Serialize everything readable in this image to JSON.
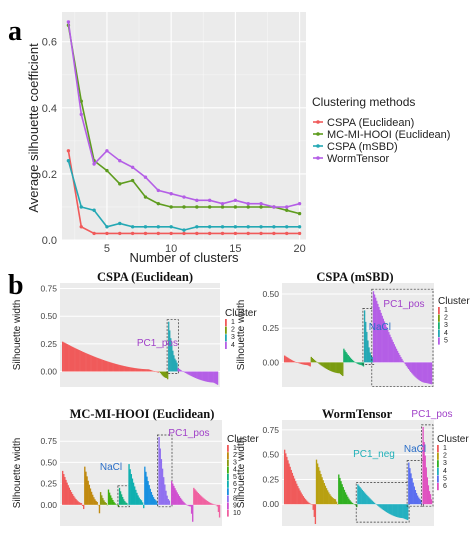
{
  "colors": {
    "CSPA (Euclidean)": "#f05a5a",
    "MC-MI-HOOI (Euclidean)": "#5e9c1e",
    "CSPA (mSBD)": "#24a8b4",
    "WormTensor": "#b45ee6",
    "panel_bg": "#ebebeb",
    "grid": "#ffffff",
    "label_purple": "#a040c8",
    "label_blue": "#2a6ec8",
    "label_cyan": "#20b0b8"
  },
  "chart_data": [
    {
      "type": "line",
      "panel_letter": "a",
      "xlabel": "Number of clusters",
      "ylabel": "Average silhouette coefficient",
      "xlim": [
        1.5,
        20.5
      ],
      "ylim": [
        0,
        0.69
      ],
      "x_ticks": [
        5,
        10,
        15,
        20
      ],
      "y_ticks": [
        0.0,
        0.2,
        0.4,
        0.6
      ],
      "y_tick_labels": [
        "0.0",
        "0.2",
        "0.4",
        "0.6"
      ],
      "grid": true,
      "legend_title": "Clustering methods",
      "legend_position": "right",
      "x": [
        2,
        3,
        4,
        5,
        6,
        7,
        8,
        9,
        10,
        11,
        12,
        13,
        14,
        15,
        16,
        17,
        18,
        19,
        20
      ],
      "series": [
        {
          "name": "CSPA (Euclidean)",
          "values": [
            0.27,
            0.04,
            0.02,
            0.02,
            0.02,
            0.02,
            0.02,
            0.02,
            0.02,
            0.02,
            0.02,
            0.02,
            0.02,
            0.02,
            0.02,
            0.02,
            0.02,
            0.02,
            0.02
          ]
        },
        {
          "name": "MC-MI-HOOI (Euclidean)",
          "values": [
            0.65,
            0.42,
            0.24,
            0.21,
            0.17,
            0.18,
            0.13,
            0.11,
            0.1,
            0.1,
            0.1,
            0.1,
            0.1,
            0.1,
            0.1,
            0.1,
            0.1,
            0.09,
            0.08
          ]
        },
        {
          "name": "CSPA (mSBD)",
          "values": [
            0.24,
            0.1,
            0.09,
            0.04,
            0.05,
            0.04,
            0.04,
            0.04,
            0.04,
            0.03,
            0.04,
            0.04,
            0.04,
            0.04,
            0.04,
            0.04,
            0.04,
            0.04,
            0.04
          ]
        },
        {
          "name": "WormTensor",
          "values": [
            0.66,
            0.38,
            0.23,
            0.27,
            0.24,
            0.22,
            0.19,
            0.15,
            0.14,
            0.13,
            0.12,
            0.12,
            0.11,
            0.12,
            0.11,
            0.11,
            0.1,
            0.1,
            0.11
          ]
        }
      ]
    },
    {
      "type": "bar",
      "panel_letter": "b",
      "title": "CSPA (Euclidean)",
      "ylabel": "Silhouette width",
      "ylim": [
        -0.14,
        0.8
      ],
      "y_ticks": [
        0.0,
        0.25,
        0.5,
        0.75
      ],
      "y_tick_labels": [
        "0.00",
        "0.25",
        "0.50",
        "0.75"
      ],
      "legend_title": "Cluster",
      "legend_labels": [
        "1",
        "2",
        "3",
        "4"
      ],
      "annotations": [
        {
          "text": "PC1_pos",
          "color": "purple"
        }
      ],
      "groups": [
        {
          "cluster": "1",
          "color": "#f05a5a",
          "start": 0.27,
          "end": 0.02,
          "share": 0.62,
          "tail": -0.01
        },
        {
          "cluster": "2",
          "color": "#7a9c10",
          "start": 0.0,
          "end": -0.06,
          "share": 0.06,
          "tail": -0.07
        },
        {
          "cluster": "3",
          "color": "#24a8b4",
          "start": 0.45,
          "end": 0.1,
          "share": 0.06,
          "tail": 0.08,
          "boxed": true
        },
        {
          "cluster": "4",
          "color": "#b45ee6",
          "start": 0.03,
          "end": -0.1,
          "share": 0.26,
          "tail": -0.12
        }
      ]
    },
    {
      "type": "bar",
      "title": "CSPA (mSBD)",
      "ylabel": "Silhouette width",
      "ylim": [
        -0.18,
        0.58
      ],
      "y_ticks": [
        0.0,
        0.25,
        0.5
      ],
      "y_tick_labels": [
        "0.00",
        "0.25",
        "0.50"
      ],
      "legend_title": "Cluster",
      "legend_labels": [
        "1",
        "2",
        "3",
        "4",
        "5"
      ],
      "annotations": [
        {
          "text": "NaCl",
          "color": "blue"
        },
        {
          "text": "PC1_pos",
          "color": "purple"
        }
      ],
      "groups": [
        {
          "cluster": "1",
          "color": "#f05a5a",
          "start": 0.05,
          "end": -0.02,
          "share": 0.18,
          "tail": -0.03
        },
        {
          "cluster": "2",
          "color": "#7a9c10",
          "start": 0.04,
          "end": -0.08,
          "share": 0.22,
          "tail": -0.1
        },
        {
          "cluster": "3",
          "color": "#18b070",
          "start": 0.1,
          "end": -0.02,
          "share": 0.14,
          "tail": -0.03
        },
        {
          "cluster": "4",
          "color": "#24a8b4",
          "start": 0.38,
          "end": 0.05,
          "share": 0.06,
          "tail": 0.04,
          "boxed": true
        },
        {
          "cluster": "5",
          "color": "#b45ee6",
          "start": 0.52,
          "end": -0.15,
          "share": 0.4,
          "tail": -0.16,
          "boxed": true
        }
      ]
    },
    {
      "type": "bar",
      "title": "MC-MI-HOOI (Euclidean)",
      "ylabel": "Silhouette width",
      "ylim": [
        -0.25,
        1.0
      ],
      "y_ticks": [
        0.0,
        0.25,
        0.5,
        0.75
      ],
      "y_tick_labels": [
        "0.00",
        "0.25",
        "0.50",
        "0.75"
      ],
      "legend_title": "Cluster",
      "legend_labels": [
        "1",
        "2",
        "3",
        "4",
        "5",
        "6",
        "7",
        "8",
        "9",
        "10"
      ],
      "annotations": [
        {
          "text": "NaCl",
          "color": "blue"
        },
        {
          "text": "PC1_pos",
          "color": "purple"
        }
      ],
      "groups": [
        {
          "cluster": "1",
          "color": "#f05a5a",
          "start": 0.4,
          "end": 0.02,
          "share": 0.14,
          "tail": -0.05
        },
        {
          "cluster": "2",
          "color": "#c08a10",
          "start": 0.45,
          "end": 0.03,
          "share": 0.1,
          "tail": -0.1
        },
        {
          "cluster": "3",
          "color": "#8c9a10",
          "start": 0.15,
          "end": 0.02,
          "share": 0.05,
          "tail": 0.0
        },
        {
          "cluster": "4",
          "color": "#40b010",
          "start": 0.18,
          "end": 0.0,
          "share": 0.07,
          "tail": -0.02
        },
        {
          "cluster": "5",
          "color": "#10b080",
          "start": 0.2,
          "end": 0.02,
          "share": 0.06,
          "tail": 0.0,
          "boxed": true
        },
        {
          "cluster": "6",
          "color": "#10b0b0",
          "start": 0.48,
          "end": 0.05,
          "share": 0.1,
          "tail": -0.04
        },
        {
          "cluster": "7",
          "color": "#1890e0",
          "start": 0.45,
          "end": 0.05,
          "share": 0.09,
          "tail": 0.0
        },
        {
          "cluster": "8",
          "color": "#9070f0",
          "start": 0.8,
          "end": 0.05,
          "share": 0.08,
          "tail": 0.0,
          "boxed": true
        },
        {
          "cluster": "9",
          "color": "#d050d0",
          "start": 0.28,
          "end": -0.02,
          "share": 0.14,
          "tail": -0.2
        },
        {
          "cluster": "10",
          "color": "#f060a0",
          "start": 0.2,
          "end": 0.0,
          "share": 0.17,
          "tail": -0.15
        }
      ]
    },
    {
      "type": "bar",
      "title": "WormTensor",
      "ylabel": "Silhouette width",
      "ylim": [
        -0.22,
        0.85
      ],
      "y_ticks": [
        0.0,
        0.25,
        0.5,
        0.75
      ],
      "y_tick_labels": [
        "0.00",
        "0.25",
        "0.50",
        "0.75"
      ],
      "legend_title": "Cluster",
      "legend_labels": [
        "1",
        "2",
        "3",
        "4",
        "5",
        "6"
      ],
      "annotations": [
        {
          "text": "PC1_neg",
          "color": "cyan"
        },
        {
          "text": "NaCl",
          "color": "blue"
        },
        {
          "text": "PC1_pos",
          "color": "purple"
        }
      ],
      "groups": [
        {
          "cluster": "1",
          "color": "#f05a5a",
          "start": 0.55,
          "end": 0.0,
          "share": 0.2,
          "tail": -0.2
        },
        {
          "cluster": "2",
          "color": "#b8a010",
          "start": 0.45,
          "end": 0.05,
          "share": 0.14,
          "tail": 0.0
        },
        {
          "cluster": "3",
          "color": "#30b020",
          "start": 0.3,
          "end": 0.0,
          "share": 0.12,
          "tail": -0.03
        },
        {
          "cluster": "4",
          "color": "#24b0c0",
          "start": 0.2,
          "end": -0.14,
          "share": 0.32,
          "tail": -0.16,
          "boxed": true
        },
        {
          "cluster": "5",
          "color": "#5a6ef0",
          "start": 0.42,
          "end": 0.05,
          "share": 0.09,
          "tail": 0.0,
          "boxed": true
        },
        {
          "cluster": "6",
          "color": "#e050c0",
          "start": 0.78,
          "end": 0.1,
          "share": 0.06,
          "tail": 0.05,
          "boxed": true
        }
      ]
    }
  ]
}
